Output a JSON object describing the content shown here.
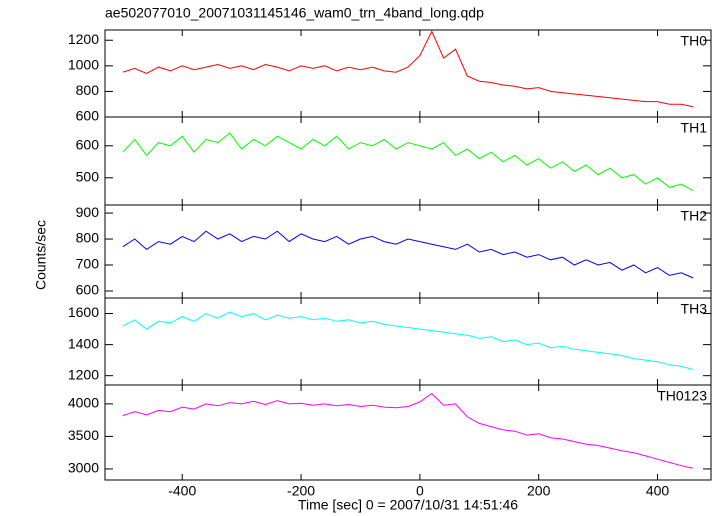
{
  "chart_data": [
    {
      "type": "line",
      "title": "ae502077010_20071031145146_wam0_trn_4band_long.qdp",
      "x": [
        -500,
        -480,
        -460,
        -440,
        -420,
        -400,
        -380,
        -360,
        -340,
        -320,
        -300,
        -280,
        -260,
        -240,
        -220,
        -200,
        -180,
        -160,
        -140,
        -120,
        -100,
        -80,
        -60,
        -40,
        -20,
        0,
        20,
        40,
        60,
        80,
        100,
        120,
        140,
        160,
        180,
        200,
        220,
        240,
        260,
        280,
        300,
        320,
        340,
        360,
        380,
        400,
        420,
        440,
        460
      ],
      "series": [
        {
          "name": "TH0",
          "color": "#ff0000",
          "values": [
            950,
            980,
            940,
            990,
            960,
            1000,
            970,
            990,
            1010,
            980,
            1000,
            970,
            1010,
            990,
            960,
            1000,
            980,
            1000,
            960,
            990,
            970,
            990,
            960,
            950,
            990,
            1080,
            1270,
            1060,
            1130,
            920,
            880,
            870,
            850,
            840,
            820,
            830,
            800,
            790,
            780,
            770,
            760,
            750,
            740,
            730,
            720,
            720,
            700,
            700,
            680
          ]
        }
      ],
      "xlim": [
        -530,
        490
      ],
      "xticks": [
        -400,
        -200,
        0,
        200,
        400
      ],
      "ylim": [
        600,
        1280
      ],
      "yticks": [
        600,
        800,
        1000,
        1200
      ]
    },
    {
      "type": "line",
      "x": [
        -500,
        -480,
        -460,
        -440,
        -420,
        -400,
        -380,
        -360,
        -340,
        -320,
        -300,
        -280,
        -260,
        -240,
        -220,
        -200,
        -180,
        -160,
        -140,
        -120,
        -100,
        -80,
        -60,
        -40,
        -20,
        0,
        20,
        40,
        60,
        80,
        100,
        120,
        140,
        160,
        180,
        200,
        220,
        240,
        260,
        280,
        300,
        320,
        340,
        360,
        380,
        400,
        420,
        440,
        460
      ],
      "series": [
        {
          "name": "TH1",
          "color": "#00ff00",
          "values": [
            580,
            620,
            570,
            610,
            600,
            630,
            580,
            620,
            610,
            640,
            590,
            620,
            600,
            630,
            610,
            590,
            620,
            600,
            630,
            590,
            610,
            600,
            620,
            590,
            610,
            600,
            590,
            610,
            570,
            590,
            560,
            580,
            550,
            570,
            540,
            560,
            530,
            550,
            520,
            540,
            510,
            530,
            500,
            510,
            480,
            500,
            470,
            480,
            460
          ]
        }
      ],
      "xlim": [
        -530,
        490
      ],
      "xticks": [
        -400,
        -200,
        0,
        200,
        400
      ],
      "ylim": [
        415,
        690
      ],
      "yticks": [
        500,
        600
      ]
    },
    {
      "type": "line",
      "y_label": "Counts/sec",
      "x": [
        -500,
        -480,
        -460,
        -440,
        -420,
        -400,
        -380,
        -360,
        -340,
        -320,
        -300,
        -280,
        -260,
        -240,
        -220,
        -200,
        -180,
        -160,
        -140,
        -120,
        -100,
        -80,
        -60,
        -40,
        -20,
        0,
        20,
        40,
        60,
        80,
        100,
        120,
        140,
        160,
        180,
        200,
        220,
        240,
        260,
        280,
        300,
        320,
        340,
        360,
        380,
        400,
        420,
        440,
        460
      ],
      "series": [
        {
          "name": "TH2",
          "color": "#0000ff",
          "values": [
            770,
            800,
            760,
            790,
            780,
            810,
            790,
            830,
            800,
            820,
            790,
            810,
            800,
            830,
            790,
            820,
            800,
            790,
            810,
            780,
            800,
            810,
            790,
            780,
            800,
            790,
            780,
            770,
            760,
            780,
            750,
            760,
            740,
            750,
            730,
            740,
            720,
            730,
            700,
            720,
            700,
            710,
            680,
            700,
            670,
            690,
            660,
            670,
            650
          ]
        }
      ],
      "xlim": [
        -530,
        490
      ],
      "xticks": [
        -400,
        -200,
        0,
        200,
        400
      ],
      "ylim": [
        573,
        931
      ],
      "yticks": [
        600,
        700,
        800,
        900
      ]
    },
    {
      "type": "line",
      "x": [
        -500,
        -480,
        -460,
        -440,
        -420,
        -400,
        -380,
        -360,
        -340,
        -320,
        -300,
        -280,
        -260,
        -240,
        -220,
        -200,
        -180,
        -160,
        -140,
        -120,
        -100,
        -80,
        -60,
        -40,
        -20,
        0,
        20,
        40,
        60,
        80,
        100,
        120,
        140,
        160,
        180,
        200,
        220,
        240,
        260,
        280,
        300,
        320,
        340,
        360,
        380,
        400,
        420,
        440,
        460
      ],
      "series": [
        {
          "name": "TH3",
          "color": "#00ffff",
          "values": [
            1520,
            1560,
            1500,
            1550,
            1540,
            1580,
            1550,
            1600,
            1570,
            1610,
            1580,
            1600,
            1560,
            1590,
            1570,
            1580,
            1560,
            1570,
            1550,
            1560,
            1540,
            1550,
            1530,
            1520,
            1510,
            1500,
            1490,
            1480,
            1470,
            1460,
            1440,
            1450,
            1420,
            1430,
            1400,
            1410,
            1380,
            1390,
            1370,
            1360,
            1350,
            1340,
            1330,
            1310,
            1300,
            1290,
            1270,
            1260,
            1240
          ]
        }
      ],
      "xlim": [
        -530,
        490
      ],
      "xticks": [
        -400,
        -200,
        0,
        200,
        400
      ],
      "ylim": [
        1140,
        1700
      ],
      "yticks": [
        1200,
        1400,
        1600
      ]
    },
    {
      "type": "line",
      "x_label": "Time [sec] 0 = 2007/10/31 14:51:46",
      "x": [
        -500,
        -480,
        -460,
        -440,
        -420,
        -400,
        -380,
        -360,
        -340,
        -320,
        -300,
        -280,
        -260,
        -240,
        -220,
        -200,
        -180,
        -160,
        -140,
        -120,
        -100,
        -80,
        -60,
        -40,
        -20,
        0,
        20,
        40,
        60,
        80,
        100,
        120,
        140,
        160,
        180,
        200,
        220,
        240,
        260,
        280,
        300,
        320,
        340,
        360,
        380,
        400,
        420,
        440,
        460
      ],
      "series": [
        {
          "name": "TH0123",
          "color": "#ff00ff",
          "values": [
            3820,
            3880,
            3830,
            3900,
            3880,
            3950,
            3920,
            4000,
            3970,
            4020,
            4000,
            4040,
            3990,
            4050,
            4000,
            4010,
            3980,
            4000,
            3970,
            3990,
            3960,
            3980,
            3950,
            3940,
            3960,
            4030,
            4160,
            3980,
            4000,
            3800,
            3700,
            3650,
            3600,
            3580,
            3520,
            3540,
            3480,
            3460,
            3420,
            3380,
            3360,
            3320,
            3280,
            3250,
            3200,
            3150,
            3100,
            3050,
            3010
          ]
        }
      ],
      "xlim": [
        -530,
        490
      ],
      "xticks": [
        -400,
        -200,
        0,
        200,
        400
      ],
      "ylim": [
        2830,
        4290
      ],
      "yticks": [
        3000,
        3500,
        4000
      ]
    }
  ]
}
